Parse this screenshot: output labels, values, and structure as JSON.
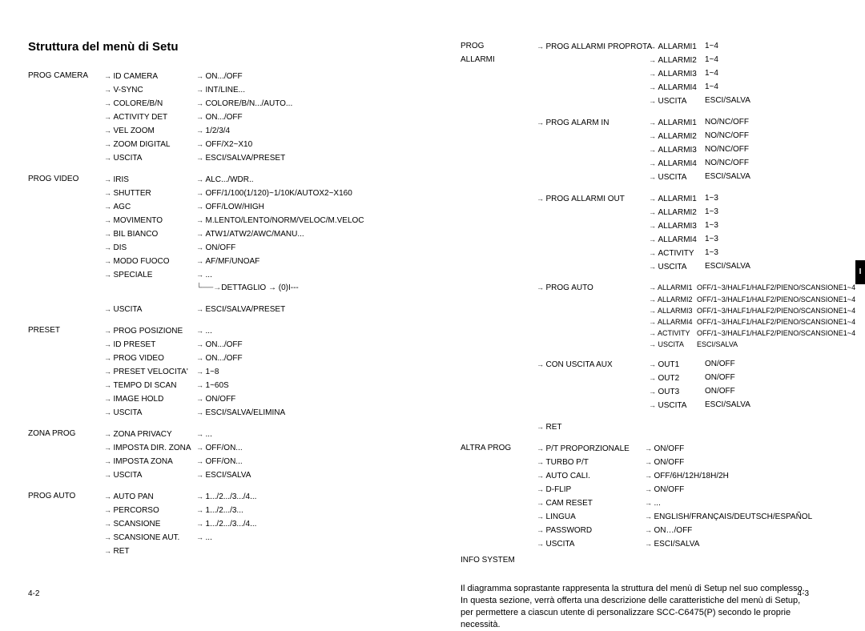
{
  "title": "Struttura del menù di Setu",
  "left_footer": "4-2",
  "right_footer": "4-3",
  "right_tab": "I",
  "desc": "Il diagramma soprastante rappresenta la struttura del menù di Setup nel suo complesso. In questa sezione, verrà offerta una descrizione delle caratteristiche del menù di Setup, per permettere a ciascun utente di personalizzare SCC-C6475(P) secondo le proprie necessità.",
  "left_groups": [
    {
      "label": "PROG CAMERA",
      "items": [
        {
          "a": "ID CAMERA",
          "b": "ON.../OFF"
        },
        {
          "a": "V-SYNC",
          "b": "INT/LINE..."
        },
        {
          "a": "COLORE/B/N",
          "b": "COLORE/B/N.../AUTO..."
        },
        {
          "a": "ACTIVITY DET",
          "b": "ON.../OFF"
        },
        {
          "a": "VEL ZOOM",
          "b": "1/2/3/4"
        },
        {
          "a": "ZOOM DIGITAL",
          "b": "OFF/X2~X10"
        },
        {
          "a": "USCITA",
          "b": "ESCI/SALVA/PRESET"
        }
      ]
    },
    {
      "label": "PROG VIDEO",
      "items": [
        {
          "a": "IRIS",
          "b": "ALC.../WDR.."
        },
        {
          "a": "SHUTTER",
          "b": "OFF/1/100(1/120)~1/10K/AUTOX2~X160"
        },
        {
          "a": "AGC",
          "b": "OFF/LOW/HIGH"
        },
        {
          "a": "MOVIMENTO",
          "b": "M.LENTO/LENTO/NORM/VELOC/M.VELOC"
        },
        {
          "a": "BIL BIANCO",
          "b": "ATW1/ATW2/AWC/MANU..."
        },
        {
          "a": "DIS",
          "b": "ON/OFF"
        },
        {
          "a": "MODO FUOCO",
          "b": "AF/MF/UNOAF"
        },
        {
          "a": "SPECIALE",
          "b": "..."
        }
      ],
      "sub": "DETTAGLIO  →  (0)I---",
      "tail": [
        {
          "a": "USCITA",
          "b": "ESCI/SALVA/PRESET"
        }
      ]
    },
    {
      "label": "PRESET",
      "items": [
        {
          "a": "PROG POSIZIONE",
          "b": "..."
        },
        {
          "a": "ID PRESET",
          "b": "ON.../OFF"
        },
        {
          "a": "PROG VIDEO",
          "b": "ON.../OFF"
        },
        {
          "a": "PRESET VELOCITA'",
          "b": "1~8"
        },
        {
          "a": "TEMPO DI SCAN",
          "b": "1~60S"
        },
        {
          "a": "IMAGE HOLD",
          "b": "ON/OFF"
        },
        {
          "a": "USCITA",
          "b": "ESCI/SALVA/ELIMINA"
        }
      ]
    },
    {
      "label": "ZONA PROG",
      "items": [
        {
          "a": "ZONA PRIVACY",
          "b": "..."
        },
        {
          "a": "IMPOSTA DIR. ZONA",
          "b": "OFF/ON..."
        },
        {
          "a": "IMPOSTA ZONA",
          "b": "OFF/ON..."
        },
        {
          "a": "USCITA",
          "b": "ESCI/SALVA"
        }
      ]
    },
    {
      "label": "PROG AUTO",
      "items": [
        {
          "a": "AUTO PAN",
          "b": "1.../2.../3.../4..."
        },
        {
          "a": "PERCORSO",
          "b": "1.../2.../3..."
        },
        {
          "a": "SCANSIONE",
          "b": "1.../2.../3.../4..."
        },
        {
          "a": "SCANSIONE AUT.",
          "b": "..."
        },
        {
          "a": "RET",
          "b": ""
        }
      ]
    }
  ],
  "right_top": {
    "label1": "PROG",
    "label2": "ALLARMI",
    "groups": [
      {
        "h": "PROG ALLARMI PROPROTA",
        "items": [
          {
            "a": "ALLARMI1",
            "b": "1~4"
          },
          {
            "a": "ALLARMI2",
            "b": "1~4"
          },
          {
            "a": "ALLARMI3",
            "b": "1~4"
          },
          {
            "a": "ALLARMI4",
            "b": "1~4"
          },
          {
            "a": "USCITA",
            "b": "ESCI/SALVA"
          }
        ]
      },
      {
        "h": "PROG ALARM IN",
        "items": [
          {
            "a": "ALLARMI1",
            "b": "NO/NC/OFF"
          },
          {
            "a": "ALLARMI2",
            "b": "NO/NC/OFF"
          },
          {
            "a": "ALLARMI3",
            "b": "NO/NC/OFF"
          },
          {
            "a": "ALLARMI4",
            "b": "NO/NC/OFF"
          },
          {
            "a": "USCITA",
            "b": "ESCI/SALVA"
          }
        ]
      },
      {
        "h": "PROG ALLARMI OUT",
        "items": [
          {
            "a": "ALLARMI1",
            "b": "1~3"
          },
          {
            "a": "ALLARMI2",
            "b": "1~3"
          },
          {
            "a": "ALLARMI3",
            "b": "1~3"
          },
          {
            "a": "ALLARMI4",
            "b": "1~3"
          },
          {
            "a": "ACTIVITY",
            "b": "1~3"
          },
          {
            "a": "USCITA",
            "b": "ESCI/SALVA"
          }
        ]
      },
      {
        "h": "PROG AUTO",
        "small": true,
        "items": [
          {
            "a": "ALLARMI1",
            "b": "OFF/1~3/HALF1/HALF2/PIENO/SCANSIONE1~4"
          },
          {
            "a": "ALLARMI2",
            "b": "OFF/1~3/HALF1/HALF2/PIENO/SCANSIONE1~4"
          },
          {
            "a": "ALLARMI3",
            "b": "OFF/1~3/HALF1/HALF2/PIENO/SCANSIONE1~4"
          },
          {
            "a": "ALLARMI4",
            "b": "OFF/1~3/HALF1/HALF2/PIENO/SCANSIONE1~4"
          },
          {
            "a": "ACTIVITY",
            "b": "OFF/1~3/HALF1/HALF2/PIENO/SCANSIONE1~4"
          },
          {
            "a": "USCITA",
            "b": "ESCI/SALVA"
          }
        ]
      },
      {
        "h": "CON USCITA AUX",
        "items": [
          {
            "a": "OUT1",
            "b": "ON/OFF"
          },
          {
            "a": "OUT2",
            "b": "ON/OFF"
          },
          {
            "a": "OUT3",
            "b": "ON/OFF"
          },
          {
            "a": "USCITA",
            "b": "ESCI/SALVA"
          }
        ]
      },
      {
        "h": "RET",
        "items": []
      }
    ]
  },
  "right_mid": {
    "label": "ALTRA PROG",
    "items": [
      {
        "a": "P/T PROPORZIONALE",
        "b": "ON/OFF"
      },
      {
        "a": "TURBO P/T",
        "b": "ON/OFF"
      },
      {
        "a": "AUTO CALI.",
        "b": "OFF/6H/12H/18H/2H"
      },
      {
        "a": "D-FLIP",
        "b": "ON/OFF"
      },
      {
        "a": "CAM RESET",
        "b": "..."
      },
      {
        "a": "LINGUA",
        "b": "ENGLISH/FRANÇAIS/DEUTSCH/ESPAÑOL"
      },
      {
        "a": "PASSWORD",
        "b": "ON…/OFF"
      },
      {
        "a": "USCITA",
        "b": "ESCI/SALVA"
      }
    ]
  },
  "info_system": "INFO SYSTEM"
}
